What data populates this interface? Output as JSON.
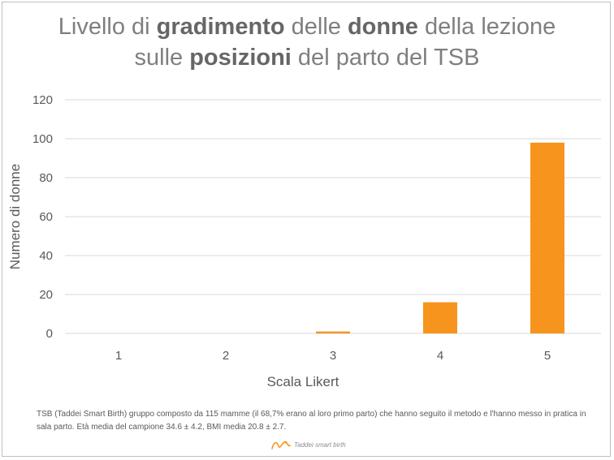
{
  "title": {
    "line1": [
      {
        "text": "Livello di ",
        "bold": false
      },
      {
        "text": "gradimento",
        "bold": true
      },
      {
        "text": " delle ",
        "bold": false
      },
      {
        "text": "donne",
        "bold": true
      },
      {
        "text": " della lezione",
        "bold": false
      }
    ],
    "line2": [
      {
        "text": "sulle ",
        "bold": false
      },
      {
        "text": "posizioni",
        "bold": true
      },
      {
        "text": " del parto del TSB",
        "bold": false
      }
    ]
  },
  "chart_data": {
    "type": "bar",
    "title": "Livello di gradimento delle donne della lezione sulle posizioni del parto del TSB",
    "categories": [
      "1",
      "2",
      "3",
      "4",
      "5"
    ],
    "values": [
      0,
      0,
      1,
      16,
      98
    ],
    "xlabel": "Scala Likert",
    "ylabel": "Numero di donne",
    "ylim": [
      0,
      120
    ],
    "yticks": [
      0,
      20,
      40,
      60,
      80,
      100,
      120
    ],
    "grid": true,
    "legend": "none",
    "bar_color": "#f7941d",
    "grid_color": "#d9d9d9"
  },
  "footnote": "TSB (Taddei Smart Birth) gruppo composto da 115 mamme (il 68,7% erano al loro primo parto) che hanno seguito il metodo e l'hanno messo in pratica in sala parto. Età media del campione 34.6 ± 4.2, BMI media 20.8 ± 2.7.",
  "logo": {
    "text": "Taddei smart birth",
    "icon": "taddei-logo-icon",
    "color": "#f7941d"
  }
}
